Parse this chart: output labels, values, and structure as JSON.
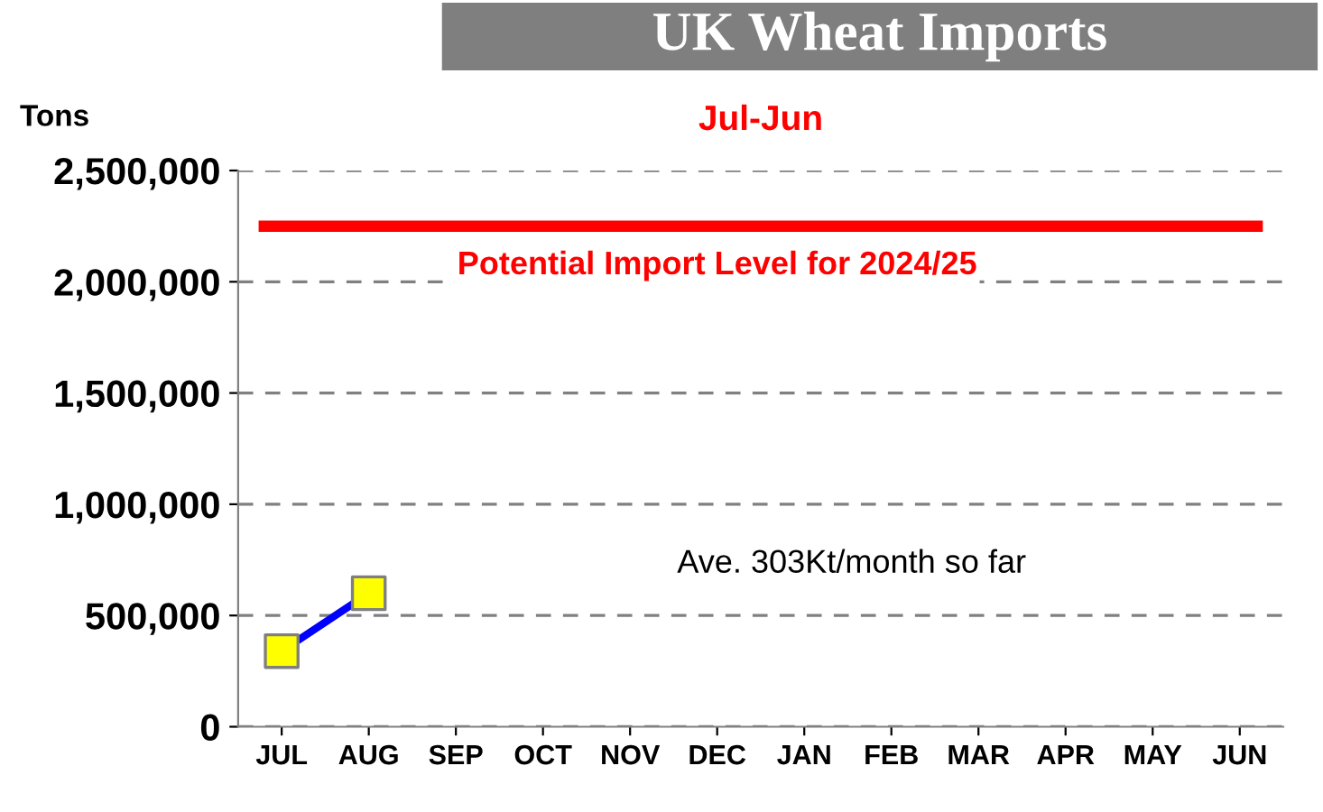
{
  "chart_data": {
    "type": "line",
    "title": "UK Wheat Imports",
    "subtitle": "Jul-Jun",
    "ylabel": "Tons",
    "categories": [
      "JUL",
      "AUG",
      "SEP",
      "OCT",
      "NOV",
      "DEC",
      "JAN",
      "FEB",
      "MAR",
      "APR",
      "MAY",
      "JUN"
    ],
    "series": [
      {
        "color": "#0000ff",
        "colors": [
          "#ffff00",
          "#ffff00",
          null,
          null,
          null,
          null,
          null,
          null,
          null,
          null,
          null,
          null
        ],
        "values": [
          340000,
          600000,
          null,
          null,
          null,
          null,
          null,
          null,
          null,
          null,
          null,
          null
        ]
      }
    ],
    "ylim": [
      0,
      2500000
    ],
    "yticks": [
      {
        "value": 0,
        "label": "0"
      },
      {
        "value": 500000,
        "label": "500,000"
      },
      {
        "value": 1000000,
        "label": "1,000,000"
      },
      {
        "value": 1500000,
        "label": "1,500,000"
      },
      {
        "value": 2000000,
        "label": "2,000,000"
      },
      {
        "value": 2500000,
        "label": "2,500,000"
      }
    ],
    "ref_lines": [
      {
        "axis": "y",
        "value": 2250000,
        "label": "Potential Import Level for 2024/25",
        "color": "#ff0000"
      }
    ],
    "annotations": [
      "Ave. 303Kt/month so far"
    ],
    "grid": "y",
    "marker": "square",
    "line_style": "solid",
    "legend": false
  }
}
